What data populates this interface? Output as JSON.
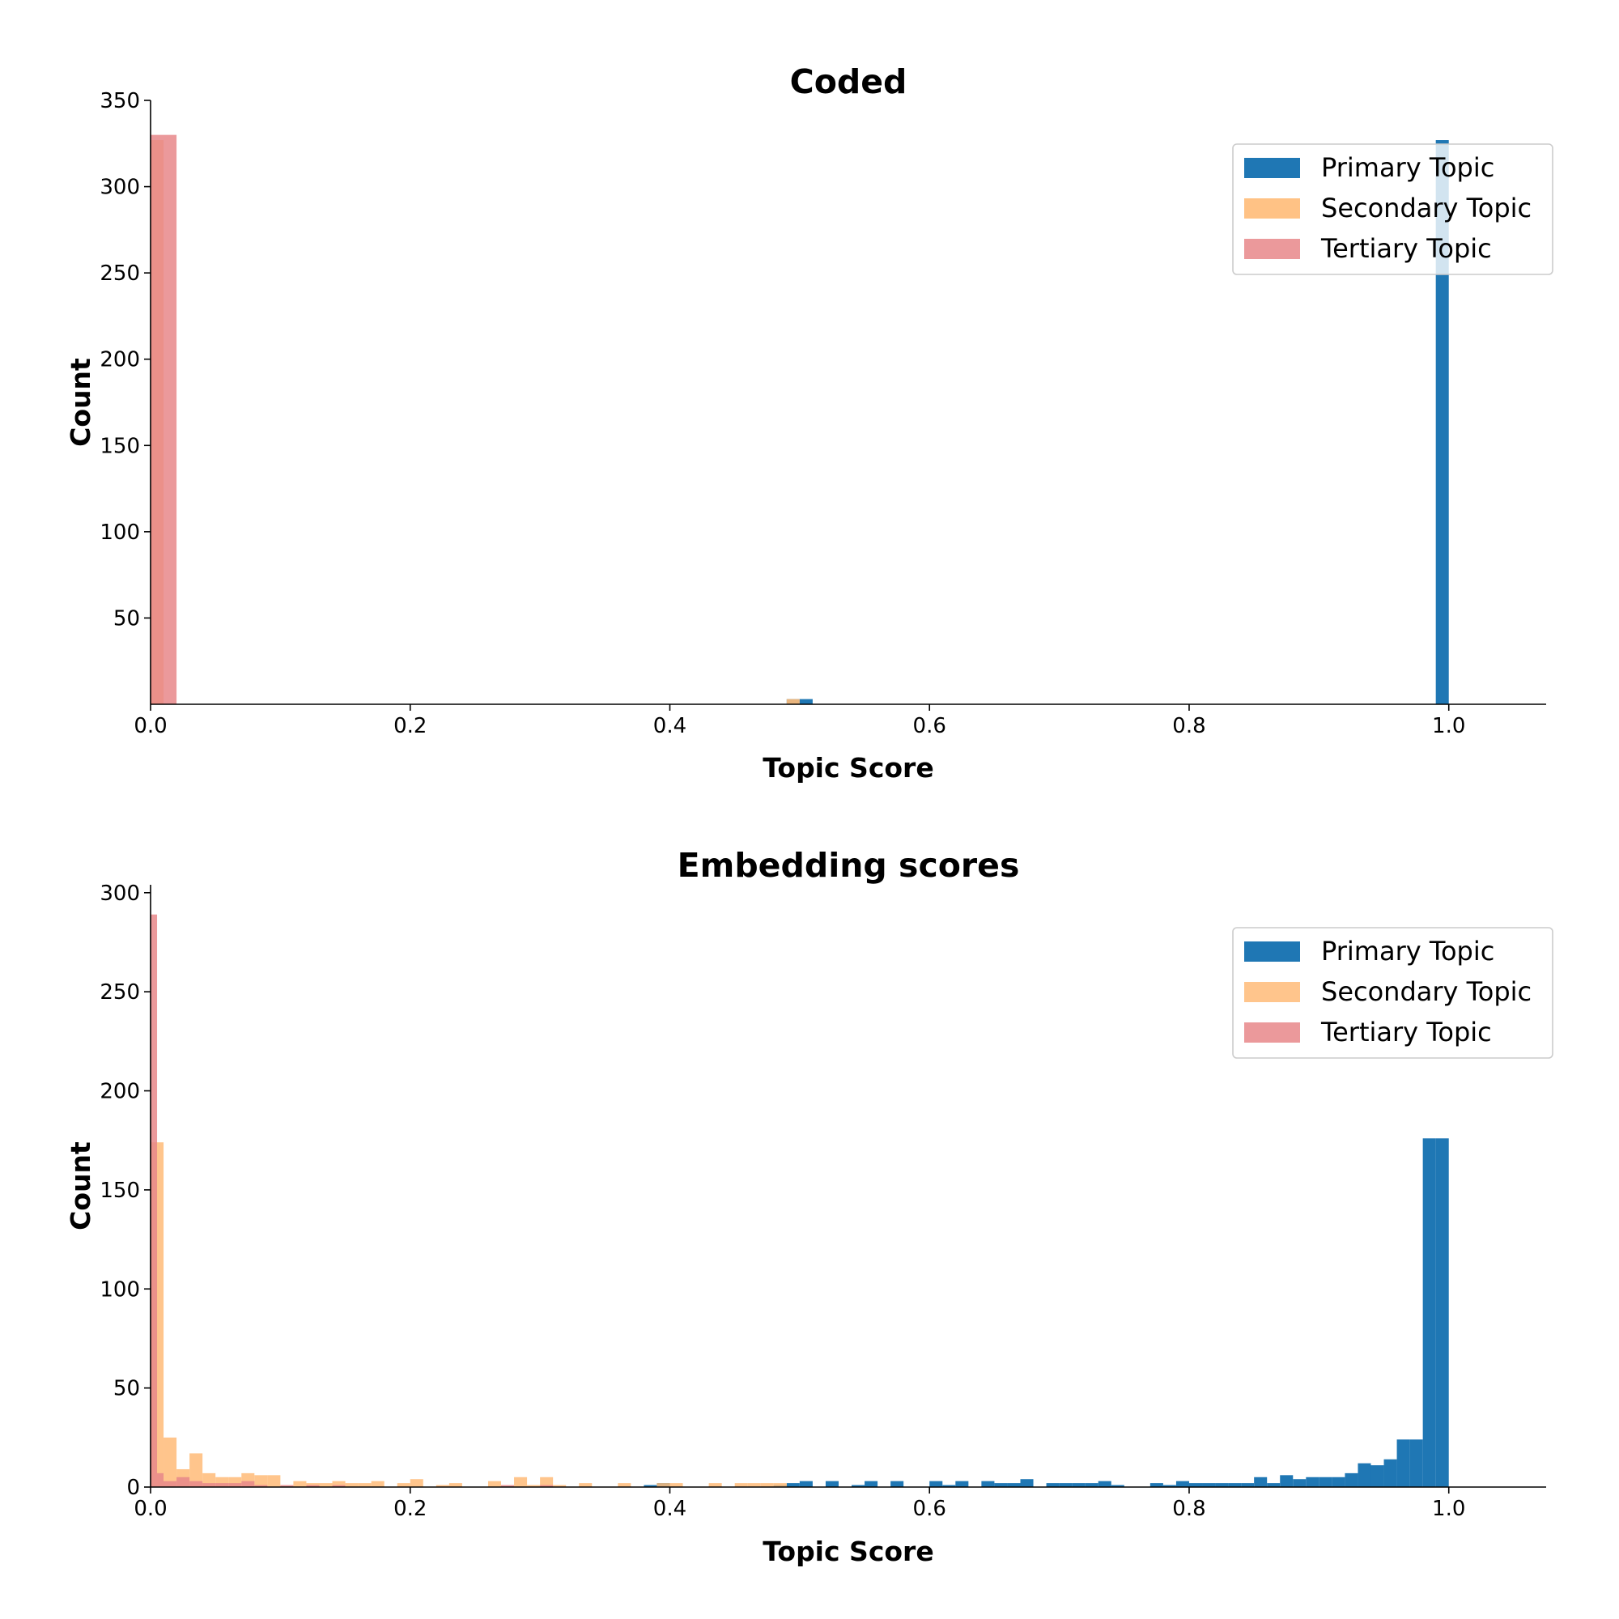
{
  "colors": {
    "primary": "#1f77b4",
    "secondary": "#ffbb78",
    "tertiary": "#e8878a"
  },
  "chart_data": [
    {
      "type": "bar",
      "title": "Coded",
      "xlabel": "Topic Score",
      "ylabel": "Count",
      "xlim": [
        0,
        1.075
      ],
      "ylim": [
        0,
        350
      ],
      "xticks": [
        "0.0",
        "0.2",
        "0.4",
        "0.6",
        "0.8",
        "1.0"
      ],
      "xtick_values": [
        0,
        0.2,
        0.4,
        0.6,
        0.8,
        1.0
      ],
      "yticks": [
        "50",
        "100",
        "150",
        "200",
        "250",
        "300",
        "350"
      ],
      "ytick_values": [
        50,
        100,
        150,
        200,
        250,
        300,
        350
      ],
      "legend_position": "top-right",
      "series": [
        {
          "name": "Primary Topic",
          "color_key": "primary",
          "opacity": 1.0,
          "bins": [
            [
              0.49,
              0.5,
              3
            ],
            [
              0.5,
              0.51,
              3
            ],
            [
              0.99,
              1.0,
              327
            ]
          ]
        },
        {
          "name": "Secondary Topic",
          "color_key": "secondary",
          "opacity": 0.9,
          "bins": [
            [
              0.0,
              0.01,
              327
            ],
            [
              0.49,
              0.5,
              3
            ]
          ]
        },
        {
          "name": "Tertiary Topic",
          "color_key": "tertiary",
          "opacity": 0.85,
          "bins": [
            [
              0.0,
              0.02,
              330
            ]
          ]
        }
      ]
    },
    {
      "type": "bar",
      "title": "Embedding scores",
      "xlabel": "Topic Score",
      "ylabel": "Count",
      "xlim": [
        0,
        1.075
      ],
      "ylim": [
        0,
        304
      ],
      "xticks": [
        "0.0",
        "0.2",
        "0.4",
        "0.6",
        "0.8",
        "1.0"
      ],
      "xtick_values": [
        0,
        0.2,
        0.4,
        0.6,
        0.8,
        1.0
      ],
      "yticks": [
        "0",
        "50",
        "100",
        "150",
        "200",
        "250",
        "300"
      ],
      "ytick_values": [
        0,
        50,
        100,
        150,
        200,
        250,
        300
      ],
      "legend_position": "top-right",
      "series": [
        {
          "name": "Primary Topic",
          "color_key": "primary",
          "opacity": 1.0,
          "bins": [
            [
              0.38,
              0.39,
              1
            ],
            [
              0.39,
              0.4,
              2
            ],
            [
              0.48,
              0.49,
              1
            ],
            [
              0.49,
              0.5,
              2
            ],
            [
              0.5,
              0.51,
              3
            ],
            [
              0.52,
              0.53,
              3
            ],
            [
              0.54,
              0.55,
              1
            ],
            [
              0.55,
              0.56,
              3
            ],
            [
              0.57,
              0.58,
              3
            ],
            [
              0.6,
              0.61,
              3
            ],
            [
              0.61,
              0.62,
              1
            ],
            [
              0.62,
              0.63,
              3
            ],
            [
              0.64,
              0.65,
              3
            ],
            [
              0.65,
              0.66,
              2
            ],
            [
              0.66,
              0.67,
              2
            ],
            [
              0.67,
              0.68,
              4
            ],
            [
              0.69,
              0.7,
              2
            ],
            [
              0.7,
              0.71,
              2
            ],
            [
              0.71,
              0.72,
              2
            ],
            [
              0.72,
              0.73,
              2
            ],
            [
              0.73,
              0.74,
              3
            ],
            [
              0.74,
              0.75,
              1
            ],
            [
              0.77,
              0.78,
              2
            ],
            [
              0.78,
              0.79,
              1
            ],
            [
              0.79,
              0.8,
              3
            ],
            [
              0.8,
              0.81,
              2
            ],
            [
              0.81,
              0.82,
              2
            ],
            [
              0.82,
              0.83,
              2
            ],
            [
              0.83,
              0.84,
              2
            ],
            [
              0.84,
              0.85,
              2
            ],
            [
              0.85,
              0.86,
              5
            ],
            [
              0.86,
              0.87,
              2
            ],
            [
              0.87,
              0.88,
              6
            ],
            [
              0.88,
              0.89,
              4
            ],
            [
              0.89,
              0.9,
              5
            ],
            [
              0.9,
              0.91,
              5
            ],
            [
              0.91,
              0.92,
              5
            ],
            [
              0.92,
              0.93,
              7
            ],
            [
              0.93,
              0.94,
              12
            ],
            [
              0.94,
              0.95,
              11
            ],
            [
              0.95,
              0.96,
              14
            ],
            [
              0.96,
              0.97,
              24
            ],
            [
              0.97,
              0.98,
              24
            ],
            [
              0.98,
              0.99,
              176
            ],
            [
              0.99,
              1.0,
              176
            ]
          ]
        },
        {
          "name": "Secondary Topic",
          "color_key": "secondary",
          "opacity": 0.85,
          "bins": [
            [
              0.0,
              0.01,
              174
            ],
            [
              0.01,
              0.02,
              25
            ],
            [
              0.02,
              0.03,
              9
            ],
            [
              0.03,
              0.04,
              17
            ],
            [
              0.04,
              0.05,
              7
            ],
            [
              0.05,
              0.06,
              5
            ],
            [
              0.06,
              0.07,
              5
            ],
            [
              0.07,
              0.08,
              7
            ],
            [
              0.08,
              0.09,
              6
            ],
            [
              0.09,
              0.1,
              6
            ],
            [
              0.11,
              0.12,
              3
            ],
            [
              0.12,
              0.13,
              2
            ],
            [
              0.13,
              0.14,
              2
            ],
            [
              0.14,
              0.15,
              3
            ],
            [
              0.15,
              0.16,
              2
            ],
            [
              0.16,
              0.17,
              2
            ],
            [
              0.17,
              0.18,
              3
            ],
            [
              0.19,
              0.2,
              2
            ],
            [
              0.2,
              0.21,
              4
            ],
            [
              0.22,
              0.23,
              1
            ],
            [
              0.23,
              0.24,
              2
            ],
            [
              0.26,
              0.27,
              3
            ],
            [
              0.28,
              0.29,
              5
            ],
            [
              0.29,
              0.3,
              1
            ],
            [
              0.3,
              0.31,
              5
            ],
            [
              0.31,
              0.32,
              1
            ],
            [
              0.33,
              0.34,
              2
            ],
            [
              0.36,
              0.37,
              2
            ],
            [
              0.39,
              0.4,
              2
            ],
            [
              0.4,
              0.41,
              2
            ],
            [
              0.43,
              0.44,
              2
            ],
            [
              0.45,
              0.46,
              2
            ],
            [
              0.46,
              0.47,
              2
            ],
            [
              0.47,
              0.48,
              2
            ],
            [
              0.48,
              0.49,
              2
            ]
          ]
        },
        {
          "name": "Tertiary Topic",
          "color_key": "tertiary",
          "opacity": 0.85,
          "bins": [
            [
              0.0,
              0.005,
              289
            ],
            [
              0.005,
              0.01,
              7
            ],
            [
              0.01,
              0.02,
              3
            ],
            [
              0.02,
              0.03,
              5
            ],
            [
              0.03,
              0.04,
              3
            ],
            [
              0.04,
              0.05,
              2
            ],
            [
              0.05,
              0.06,
              2
            ],
            [
              0.06,
              0.07,
              2
            ],
            [
              0.07,
              0.08,
              3
            ],
            [
              0.08,
              0.09,
              1
            ],
            [
              0.1,
              0.11,
              1
            ],
            [
              0.12,
              0.13,
              1
            ],
            [
              0.14,
              0.15,
              1
            ],
            [
              0.27,
              0.28,
              1
            ],
            [
              0.3,
              0.31,
              1
            ]
          ]
        }
      ]
    }
  ]
}
